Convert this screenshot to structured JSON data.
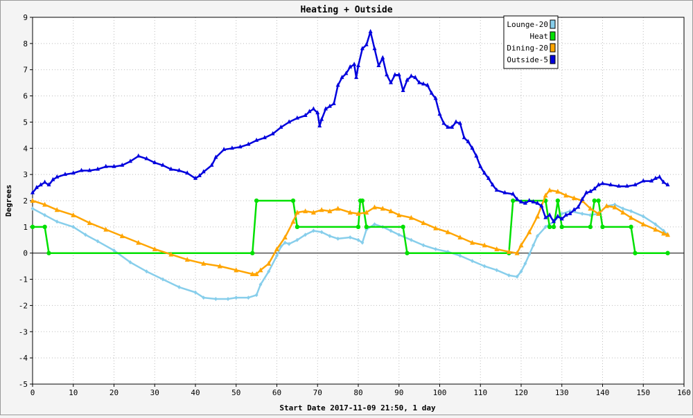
{
  "chart_data": {
    "type": "line",
    "title": "Heating + Outside",
    "xlabel": "Start Date 2017-11-09 21:50, 1 day",
    "ylabel": "Degrees",
    "xlim": [
      0,
      160
    ],
    "ylim": [
      -5,
      9
    ],
    "xticks": [
      0,
      10,
      20,
      30,
      40,
      50,
      60,
      70,
      80,
      90,
      100,
      110,
      120,
      130,
      140,
      150,
      160
    ],
    "yticks": [
      -5,
      -4,
      -3,
      -2,
      -1,
      0,
      1,
      2,
      3,
      4,
      5,
      6,
      7,
      8,
      9
    ],
    "grid": true,
    "legend_position": "top-right",
    "series": [
      {
        "name": "Lounge-20",
        "color": "#87ceeb",
        "marker": "diamond",
        "points": [
          [
            0,
            1.7
          ],
          [
            3,
            1.45
          ],
          [
            6,
            1.2
          ],
          [
            10,
            1.0
          ],
          [
            13,
            0.7
          ],
          [
            16,
            0.45
          ],
          [
            20,
            0.1
          ],
          [
            24,
            -0.35
          ],
          [
            28,
            -0.7
          ],
          [
            32,
            -1.0
          ],
          [
            36,
            -1.3
          ],
          [
            40,
            -1.5
          ],
          [
            42,
            -1.7
          ],
          [
            45,
            -1.75
          ],
          [
            48,
            -1.75
          ],
          [
            50,
            -1.7
          ],
          [
            53,
            -1.7
          ],
          [
            55,
            -1.6
          ],
          [
            56,
            -1.2
          ],
          [
            58,
            -0.7
          ],
          [
            60,
            -0.1
          ],
          [
            61,
            0.25
          ],
          [
            62,
            0.4
          ],
          [
            63,
            0.35
          ],
          [
            65,
            0.5
          ],
          [
            67,
            0.7
          ],
          [
            69,
            0.85
          ],
          [
            71,
            0.8
          ],
          [
            73,
            0.65
          ],
          [
            75,
            0.55
          ],
          [
            78,
            0.6
          ],
          [
            80,
            0.5
          ],
          [
            81,
            0.4
          ],
          [
            82,
            0.9
          ],
          [
            84,
            1.1
          ],
          [
            86,
            1.0
          ],
          [
            88,
            0.85
          ],
          [
            90,
            0.7
          ],
          [
            93,
            0.5
          ],
          [
            96,
            0.3
          ],
          [
            99,
            0.15
          ],
          [
            102,
            0.05
          ],
          [
            105,
            -0.1
          ],
          [
            108,
            -0.3
          ],
          [
            111,
            -0.5
          ],
          [
            114,
            -0.65
          ],
          [
            117,
            -0.85
          ],
          [
            119,
            -0.9
          ],
          [
            120,
            -0.7
          ],
          [
            121,
            -0.4
          ],
          [
            122,
            -0.05
          ],
          [
            123,
            0.3
          ],
          [
            124,
            0.65
          ],
          [
            126,
            1.0
          ],
          [
            128,
            1.2
          ],
          [
            130,
            1.5
          ],
          [
            132,
            1.6
          ],
          [
            135,
            1.5
          ],
          [
            137,
            1.45
          ],
          [
            139,
            1.5
          ],
          [
            141,
            1.8
          ],
          [
            143,
            1.85
          ],
          [
            145,
            1.7
          ],
          [
            147,
            1.6
          ],
          [
            150,
            1.4
          ],
          [
            153,
            1.1
          ],
          [
            155,
            0.85
          ],
          [
            156,
            0.7
          ]
        ]
      },
      {
        "name": "Heat",
        "color": "#00e000",
        "marker": "circle",
        "points": [
          [
            0,
            1
          ],
          [
            3,
            1
          ],
          [
            4,
            0
          ],
          [
            54,
            0
          ],
          [
            55,
            2
          ],
          [
            64,
            2
          ],
          [
            65,
            1
          ],
          [
            80,
            1
          ],
          [
            80.5,
            2
          ],
          [
            81,
            2
          ],
          [
            82,
            1
          ],
          [
            91,
            1
          ],
          [
            92,
            0
          ],
          [
            117,
            0
          ],
          [
            118,
            2
          ],
          [
            126,
            2
          ],
          [
            127,
            1
          ],
          [
            128,
            1
          ],
          [
            129,
            2
          ],
          [
            130,
            1
          ],
          [
            137,
            1
          ],
          [
            138,
            2
          ],
          [
            139,
            2
          ],
          [
            140,
            1
          ],
          [
            147,
            1
          ],
          [
            148,
            0
          ],
          [
            156,
            0
          ]
        ]
      },
      {
        "name": "Dining-20",
        "color": "#ffa500",
        "marker": "triangle",
        "points": [
          [
            0,
            2.0
          ],
          [
            3,
            1.85
          ],
          [
            6,
            1.65
          ],
          [
            10,
            1.45
          ],
          [
            14,
            1.15
          ],
          [
            18,
            0.9
          ],
          [
            22,
            0.65
          ],
          [
            26,
            0.4
          ],
          [
            30,
            0.15
          ],
          [
            34,
            -0.05
          ],
          [
            38,
            -0.25
          ],
          [
            42,
            -0.4
          ],
          [
            46,
            -0.5
          ],
          [
            50,
            -0.65
          ],
          [
            54,
            -0.8
          ],
          [
            55,
            -0.8
          ],
          [
            56,
            -0.65
          ],
          [
            58,
            -0.4
          ],
          [
            60,
            0.15
          ],
          [
            62,
            0.6
          ],
          [
            64,
            1.2
          ],
          [
            65,
            1.55
          ],
          [
            67,
            1.6
          ],
          [
            69,
            1.55
          ],
          [
            71,
            1.65
          ],
          [
            73,
            1.6
          ],
          [
            75,
            1.7
          ],
          [
            78,
            1.55
          ],
          [
            80,
            1.5
          ],
          [
            82,
            1.55
          ],
          [
            84,
            1.75
          ],
          [
            86,
            1.7
          ],
          [
            88,
            1.6
          ],
          [
            90,
            1.45
          ],
          [
            93,
            1.35
          ],
          [
            96,
            1.15
          ],
          [
            99,
            0.95
          ],
          [
            102,
            0.8
          ],
          [
            105,
            0.6
          ],
          [
            108,
            0.4
          ],
          [
            111,
            0.3
          ],
          [
            114,
            0.15
          ],
          [
            117,
            0.05
          ],
          [
            119,
            0.0
          ],
          [
            120,
            0.3
          ],
          [
            122,
            0.8
          ],
          [
            124,
            1.4
          ],
          [
            126,
            2.2
          ],
          [
            127,
            2.4
          ],
          [
            129,
            2.35
          ],
          [
            131,
            2.2
          ],
          [
            133,
            2.1
          ],
          [
            135,
            2.0
          ],
          [
            137,
            1.7
          ],
          [
            139,
            1.5
          ],
          [
            141,
            1.8
          ],
          [
            143,
            1.75
          ],
          [
            145,
            1.55
          ],
          [
            147,
            1.35
          ],
          [
            150,
            1.1
          ],
          [
            153,
            0.9
          ],
          [
            155,
            0.75
          ],
          [
            156,
            0.7
          ]
        ]
      },
      {
        "name": "Outside-5",
        "color": "#0000dd",
        "marker": "square",
        "points": [
          [
            0,
            2.3
          ],
          [
            1,
            2.5
          ],
          [
            2,
            2.6
          ],
          [
            3,
            2.7
          ],
          [
            4,
            2.6
          ],
          [
            5,
            2.8
          ],
          [
            6,
            2.9
          ],
          [
            8,
            3.0
          ],
          [
            10,
            3.05
          ],
          [
            12,
            3.15
          ],
          [
            14,
            3.15
          ],
          [
            16,
            3.2
          ],
          [
            18,
            3.3
          ],
          [
            20,
            3.3
          ],
          [
            22,
            3.35
          ],
          [
            24,
            3.5
          ],
          [
            26,
            3.7
          ],
          [
            28,
            3.6
          ],
          [
            30,
            3.45
          ],
          [
            32,
            3.35
          ],
          [
            34,
            3.2
          ],
          [
            36,
            3.15
          ],
          [
            38,
            3.05
          ],
          [
            40,
            2.85
          ],
          [
            41,
            2.95
          ],
          [
            42,
            3.1
          ],
          [
            44,
            3.35
          ],
          [
            45,
            3.65
          ],
          [
            47,
            3.95
          ],
          [
            49,
            4.0
          ],
          [
            51,
            4.05
          ],
          [
            53,
            4.15
          ],
          [
            55,
            4.3
          ],
          [
            57,
            4.4
          ],
          [
            59,
            4.55
          ],
          [
            61,
            4.8
          ],
          [
            63,
            5.0
          ],
          [
            65,
            5.15
          ],
          [
            67,
            5.25
          ],
          [
            68,
            5.4
          ],
          [
            69,
            5.5
          ],
          [
            70,
            5.35
          ],
          [
            70.5,
            4.85
          ],
          [
            71,
            5.1
          ],
          [
            72,
            5.5
          ],
          [
            73,
            5.6
          ],
          [
            74,
            5.7
          ],
          [
            75,
            6.4
          ],
          [
            76,
            6.7
          ],
          [
            77,
            6.85
          ],
          [
            78,
            7.1
          ],
          [
            79,
            7.2
          ],
          [
            79.5,
            6.7
          ],
          [
            80,
            7.15
          ],
          [
            81,
            7.8
          ],
          [
            82,
            7.95
          ],
          [
            83,
            8.45
          ],
          [
            84,
            7.8
          ],
          [
            85,
            7.15
          ],
          [
            86,
            7.45
          ],
          [
            87,
            6.8
          ],
          [
            88,
            6.5
          ],
          [
            89,
            6.8
          ],
          [
            90,
            6.8
          ],
          [
            91,
            6.2
          ],
          [
            92,
            6.6
          ],
          [
            93,
            6.75
          ],
          [
            94,
            6.7
          ],
          [
            95,
            6.5
          ],
          [
            96,
            6.45
          ],
          [
            97,
            6.4
          ],
          [
            98,
            6.1
          ],
          [
            99,
            5.9
          ],
          [
            100,
            5.3
          ],
          [
            101,
            4.95
          ],
          [
            102,
            4.8
          ],
          [
            103,
            4.8
          ],
          [
            104,
            5.0
          ],
          [
            105,
            4.95
          ],
          [
            106,
            4.4
          ],
          [
            107,
            4.25
          ],
          [
            108,
            4.0
          ],
          [
            109,
            3.7
          ],
          [
            110,
            3.3
          ],
          [
            111,
            3.05
          ],
          [
            112,
            2.85
          ],
          [
            113,
            2.6
          ],
          [
            114,
            2.4
          ],
          [
            116,
            2.3
          ],
          [
            118,
            2.25
          ],
          [
            119,
            2.05
          ],
          [
            120,
            1.95
          ],
          [
            121,
            1.9
          ],
          [
            122,
            2.0
          ],
          [
            123,
            1.95
          ],
          [
            124,
            1.9
          ],
          [
            125,
            1.8
          ],
          [
            126,
            1.35
          ],
          [
            127,
            1.45
          ],
          [
            128,
            1.2
          ],
          [
            129,
            1.4
          ],
          [
            130,
            1.3
          ],
          [
            131,
            1.45
          ],
          [
            132,
            1.5
          ],
          [
            133,
            1.65
          ],
          [
            134,
            1.75
          ],
          [
            135,
            2.05
          ],
          [
            136,
            2.3
          ],
          [
            137,
            2.35
          ],
          [
            138,
            2.45
          ],
          [
            139,
            2.6
          ],
          [
            140,
            2.65
          ],
          [
            142,
            2.6
          ],
          [
            144,
            2.55
          ],
          [
            146,
            2.55
          ],
          [
            148,
            2.6
          ],
          [
            150,
            2.75
          ],
          [
            152,
            2.75
          ],
          [
            153,
            2.85
          ],
          [
            154,
            2.9
          ],
          [
            155,
            2.7
          ],
          [
            156,
            2.6
          ]
        ]
      }
    ]
  }
}
